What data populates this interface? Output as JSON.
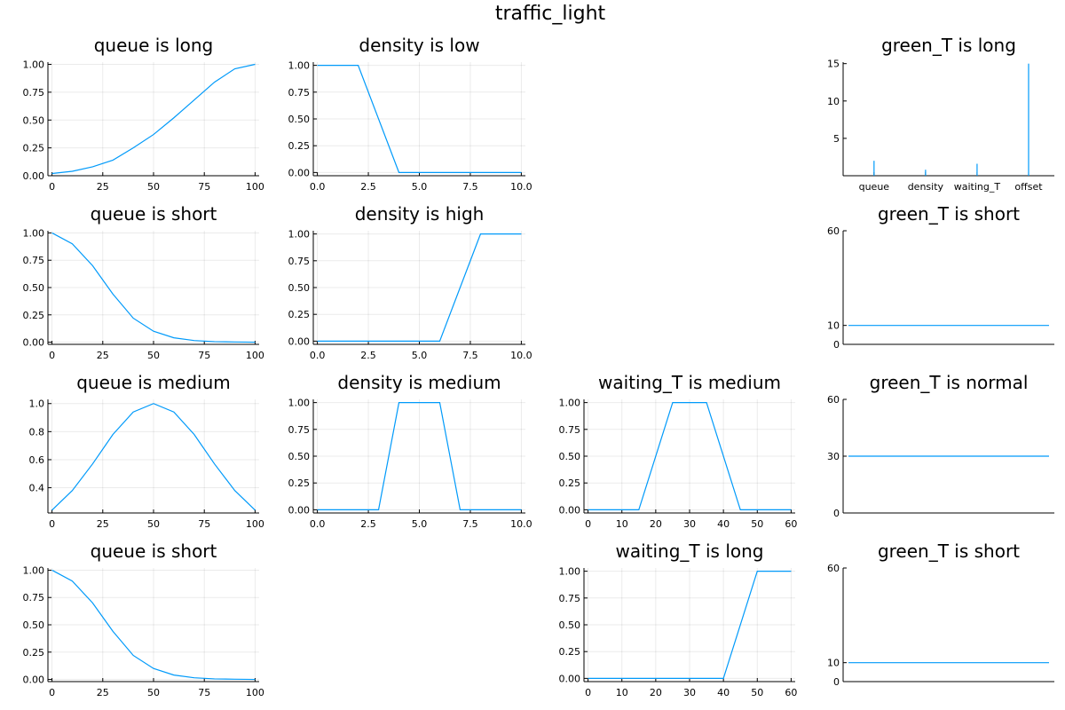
{
  "figure_title": "traffic_light",
  "colors": {
    "series": "#009AFA"
  },
  "chart_data": [
    {
      "name": "queue-long",
      "row": 0,
      "col": 0,
      "type": "line",
      "title": "queue is long",
      "xlim": [
        -2,
        102
      ],
      "ylim": [
        0,
        1.02
      ],
      "xticks": [
        0,
        25,
        50,
        75,
        100
      ],
      "xticklabels": [
        "0",
        "25",
        "50",
        "75",
        "100"
      ],
      "yticks": [
        0,
        0.25,
        0.5,
        0.75,
        1.0
      ],
      "yticklabels": [
        "0.00",
        "0.25",
        "0.50",
        "0.75",
        "1.00"
      ],
      "grid": true,
      "x": [
        0,
        10,
        20,
        30,
        40,
        50,
        60,
        70,
        80,
        90,
        100
      ],
      "y": [
        0.02,
        0.04,
        0.08,
        0.14,
        0.25,
        0.37,
        0.52,
        0.68,
        0.84,
        0.96,
        1.0
      ]
    },
    {
      "name": "density-low",
      "row": 0,
      "col": 1,
      "type": "line",
      "title": "density is low",
      "xlim": [
        -0.2,
        10.2
      ],
      "ylim": [
        -0.03,
        1.03
      ],
      "xticks": [
        0,
        2.5,
        5,
        7.5,
        10
      ],
      "xticklabels": [
        "0.0",
        "2.5",
        "5.0",
        "7.5",
        "10.0"
      ],
      "yticks": [
        0,
        0.25,
        0.5,
        0.75,
        1.0
      ],
      "yticklabels": [
        "0.00",
        "0.25",
        "0.50",
        "0.75",
        "1.00"
      ],
      "grid": true,
      "x": [
        0,
        2,
        4,
        10
      ],
      "y": [
        1,
        1,
        0,
        0
      ]
    },
    {
      "name": "green-long",
      "row": 0,
      "col": 3,
      "type": "stem",
      "title": "green_T is long",
      "xlim": [
        0.4,
        4.5
      ],
      "ylim": [
        0,
        15.2
      ],
      "xticks": [
        1,
        2,
        3,
        4
      ],
      "xticklabels": [
        "queue",
        "density",
        "waiting_T",
        "offset"
      ],
      "yticks": [
        5,
        10,
        15
      ],
      "yticklabels": [
        "5",
        "10",
        "15"
      ],
      "grid": false,
      "categories": [
        "queue",
        "density",
        "waiting_T",
        "offset"
      ],
      "values": [
        2,
        0.8,
        1.6,
        15
      ]
    },
    {
      "name": "queue-short-1",
      "row": 1,
      "col": 0,
      "type": "line",
      "title": "queue is short",
      "xlim": [
        -2,
        102
      ],
      "ylim": [
        -0.02,
        1.02
      ],
      "xticks": [
        0,
        25,
        50,
        75,
        100
      ],
      "xticklabels": [
        "0",
        "25",
        "50",
        "75",
        "100"
      ],
      "yticks": [
        0,
        0.25,
        0.5,
        0.75,
        1.0
      ],
      "yticklabels": [
        "0.00",
        "0.25",
        "0.50",
        "0.75",
        "1.00"
      ],
      "grid": true,
      "x": [
        0,
        10,
        20,
        30,
        40,
        50,
        60,
        70,
        80,
        90,
        100
      ],
      "y": [
        1.0,
        0.9,
        0.7,
        0.44,
        0.22,
        0.1,
        0.04,
        0.015,
        0.005,
        0.002,
        0.0
      ]
    },
    {
      "name": "density-high",
      "row": 1,
      "col": 1,
      "type": "line",
      "title": "density is high",
      "xlim": [
        -0.2,
        10.2
      ],
      "ylim": [
        -0.03,
        1.03
      ],
      "xticks": [
        0,
        2.5,
        5,
        7.5,
        10
      ],
      "xticklabels": [
        "0.0",
        "2.5",
        "5.0",
        "7.5",
        "10.0"
      ],
      "yticks": [
        0,
        0.25,
        0.5,
        0.75,
        1.0
      ],
      "yticklabels": [
        "0.00",
        "0.25",
        "0.50",
        "0.75",
        "1.00"
      ],
      "grid": true,
      "x": [
        0,
        6,
        8,
        10
      ],
      "y": [
        0,
        0,
        1,
        1
      ]
    },
    {
      "name": "green-short-1",
      "row": 1,
      "col": 3,
      "type": "hline",
      "title": "green_T is short",
      "xlim": [
        0,
        1
      ],
      "ylim": [
        0,
        60
      ],
      "xticks": [],
      "xticklabels": [],
      "yticks": [
        0,
        10,
        60
      ],
      "yticklabels": [
        "0",
        "10",
        "60"
      ],
      "grid": false,
      "value": 10
    },
    {
      "name": "queue-medium",
      "row": 2,
      "col": 0,
      "type": "line",
      "title": "queue is medium",
      "xlim": [
        -2,
        102
      ],
      "ylim": [
        0.22,
        1.03
      ],
      "xticks": [
        0,
        25,
        50,
        75,
        100
      ],
      "xticklabels": [
        "0",
        "25",
        "50",
        "75",
        "100"
      ],
      "yticks": [
        0.4,
        0.6,
        0.8,
        1.0
      ],
      "yticklabels": [
        "0.4",
        "0.6",
        "0.8",
        "1.0"
      ],
      "grid": true,
      "x": [
        0,
        10,
        20,
        30,
        40,
        50,
        60,
        70,
        80,
        90,
        100
      ],
      "y": [
        0.24,
        0.38,
        0.57,
        0.78,
        0.94,
        1.0,
        0.94,
        0.78,
        0.57,
        0.38,
        0.24
      ]
    },
    {
      "name": "density-medium",
      "row": 2,
      "col": 1,
      "type": "line",
      "title": "density is medium",
      "xlim": [
        -0.2,
        10.2
      ],
      "ylim": [
        -0.03,
        1.03
      ],
      "xticks": [
        0,
        2.5,
        5,
        7.5,
        10
      ],
      "xticklabels": [
        "0.0",
        "2.5",
        "5.0",
        "7.5",
        "10.0"
      ],
      "yticks": [
        0,
        0.25,
        0.5,
        0.75,
        1.0
      ],
      "yticklabels": [
        "0.00",
        "0.25",
        "0.50",
        "0.75",
        "1.00"
      ],
      "grid": true,
      "x": [
        0,
        3,
        4,
        6,
        7,
        10
      ],
      "y": [
        0,
        0,
        1,
        1,
        0,
        0
      ]
    },
    {
      "name": "waiting-medium",
      "row": 2,
      "col": 2,
      "type": "line",
      "title": "waiting_T is medium",
      "xlim": [
        -1.2,
        61.2
      ],
      "ylim": [
        -0.03,
        1.03
      ],
      "xticks": [
        0,
        10,
        20,
        30,
        40,
        50,
        60
      ],
      "xticklabels": [
        "0",
        "10",
        "20",
        "30",
        "40",
        "50",
        "60"
      ],
      "yticks": [
        0,
        0.25,
        0.5,
        0.75,
        1.0
      ],
      "yticklabels": [
        "0.00",
        "0.25",
        "0.50",
        "0.75",
        "1.00"
      ],
      "grid": true,
      "x": [
        0,
        15,
        25,
        35,
        45,
        60
      ],
      "y": [
        0,
        0,
        1,
        1,
        0,
        0
      ]
    },
    {
      "name": "green-normal",
      "row": 2,
      "col": 3,
      "type": "hline",
      "title": "green_T is normal",
      "xlim": [
        0,
        1
      ],
      "ylim": [
        0,
        60
      ],
      "xticks": [],
      "xticklabels": [],
      "yticks": [
        0,
        30,
        60
      ],
      "yticklabels": [
        "0",
        "30",
        "60"
      ],
      "grid": false,
      "value": 30
    },
    {
      "name": "queue-short-2",
      "row": 3,
      "col": 0,
      "type": "line",
      "title": "queue is short",
      "xlim": [
        -2,
        102
      ],
      "ylim": [
        -0.02,
        1.02
      ],
      "xticks": [
        0,
        25,
        50,
        75,
        100
      ],
      "xticklabels": [
        "0",
        "25",
        "50",
        "75",
        "100"
      ],
      "yticks": [
        0,
        0.25,
        0.5,
        0.75,
        1.0
      ],
      "yticklabels": [
        "0.00",
        "0.25",
        "0.50",
        "0.75",
        "1.00"
      ],
      "grid": true,
      "x": [
        0,
        10,
        20,
        30,
        40,
        50,
        60,
        70,
        80,
        90,
        100
      ],
      "y": [
        1.0,
        0.9,
        0.7,
        0.44,
        0.22,
        0.1,
        0.04,
        0.015,
        0.005,
        0.002,
        0.0
      ]
    },
    {
      "name": "waiting-long",
      "row": 3,
      "col": 2,
      "type": "line",
      "title": "waiting_T is long",
      "xlim": [
        -1.2,
        61.2
      ],
      "ylim": [
        -0.03,
        1.03
      ],
      "xticks": [
        0,
        10,
        20,
        30,
        40,
        50,
        60
      ],
      "xticklabels": [
        "0",
        "10",
        "20",
        "30",
        "40",
        "50",
        "60"
      ],
      "yticks": [
        0,
        0.25,
        0.5,
        0.75,
        1.0
      ],
      "yticklabels": [
        "0.00",
        "0.25",
        "0.50",
        "0.75",
        "1.00"
      ],
      "grid": true,
      "x": [
        0,
        40,
        50,
        60
      ],
      "y": [
        0,
        0,
        1,
        1
      ]
    },
    {
      "name": "green-short-2",
      "row": 3,
      "col": 3,
      "type": "hline",
      "title": "green_T is short",
      "xlim": [
        0,
        1
      ],
      "ylim": [
        0,
        60
      ],
      "xticks": [],
      "xticklabels": [],
      "yticks": [
        0,
        10,
        60
      ],
      "yticklabels": [
        "0",
        "10",
        "60"
      ],
      "grid": false,
      "value": 10
    }
  ]
}
